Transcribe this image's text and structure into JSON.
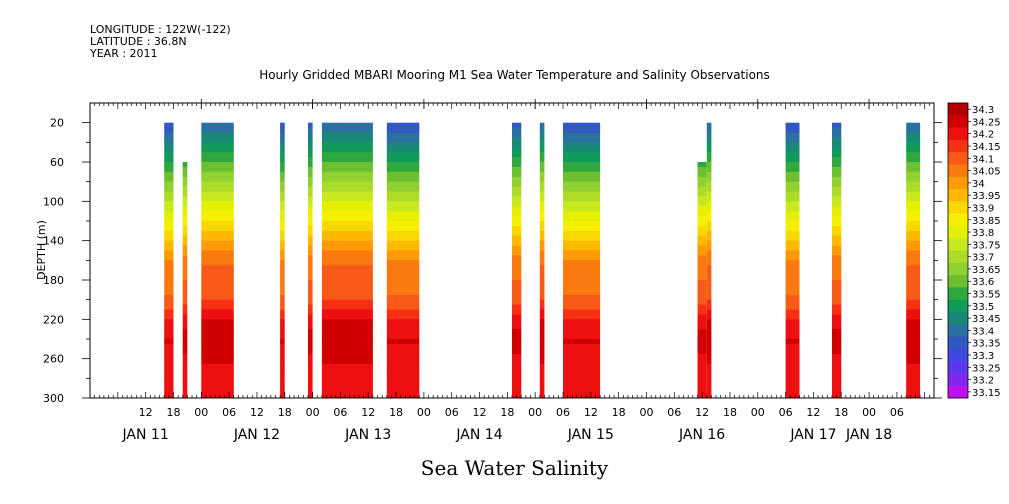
{
  "header": {
    "longitude": "LONGITUDE : 122W(-122)",
    "latitude": "LATITUDE : 36.8N",
    "year": "YEAR : 2011"
  },
  "chart_data": {
    "type": "heatmap",
    "title": "Hourly Gridded MBARI Mooring M1 Sea Water Temperature and Salinity Observations",
    "xlabel": "Sea Water Salinity",
    "ylabel": "DEPTH (m)",
    "ylim": [
      300,
      0
    ],
    "y_ticks": [
      20,
      60,
      100,
      140,
      180,
      220,
      260,
      300
    ],
    "x_range_hours": [
      0,
      182
    ],
    "x_hour_ticks": [
      {
        "h": 12,
        "label": "12"
      },
      {
        "h": 18,
        "label": "18"
      },
      {
        "h": 24,
        "label": "00"
      },
      {
        "h": 30,
        "label": "06"
      },
      {
        "h": 36,
        "label": "12"
      },
      {
        "h": 42,
        "label": "18"
      },
      {
        "h": 48,
        "label": "00"
      },
      {
        "h": 54,
        "label": "06"
      },
      {
        "h": 60,
        "label": "12"
      },
      {
        "h": 66,
        "label": "18"
      },
      {
        "h": 72,
        "label": "00"
      },
      {
        "h": 78,
        "label": "06"
      },
      {
        "h": 84,
        "label": "12"
      },
      {
        "h": 90,
        "label": "18"
      },
      {
        "h": 96,
        "label": "00"
      },
      {
        "h": 102,
        "label": "06"
      },
      {
        "h": 108,
        "label": "12"
      },
      {
        "h": 114,
        "label": "18"
      },
      {
        "h": 120,
        "label": "00"
      },
      {
        "h": 126,
        "label": "06"
      },
      {
        "h": 132,
        "label": "12"
      },
      {
        "h": 138,
        "label": "18"
      },
      {
        "h": 144,
        "label": "00"
      },
      {
        "h": 150,
        "label": "06"
      },
      {
        "h": 156,
        "label": "12"
      },
      {
        "h": 162,
        "label": "18"
      },
      {
        "h": 168,
        "label": "00"
      },
      {
        "h": 174,
        "label": "06"
      }
    ],
    "day_labels": [
      {
        "h": 12,
        "label": "JAN 11"
      },
      {
        "h": 36,
        "label": "JAN 12"
      },
      {
        "h": 60,
        "label": "JAN 13"
      },
      {
        "h": 84,
        "label": "JAN 14"
      },
      {
        "h": 108,
        "label": "JAN 15"
      },
      {
        "h": 132,
        "label": "JAN 16"
      },
      {
        "h": 156,
        "label": "JAN 17"
      },
      {
        "h": 168,
        "label": "JAN 18"
      }
    ],
    "colorbar": {
      "levels": [
        "34.3",
        "34.25",
        "34.2",
        "34.15",
        "34.1",
        "34.05",
        "34",
        "33.95",
        "33.9",
        "33.85",
        "33.8",
        "33.75",
        "33.7",
        "33.65",
        "33.6",
        "33.55",
        "33.5",
        "33.45",
        "33.4",
        "33.35",
        "33.3",
        "33.25",
        "33.2",
        "33.15"
      ],
      "colors": [
        "#b00000",
        "#d00000",
        "#ee1010",
        "#f53015",
        "#f85a18",
        "#fa7a10",
        "#fc9a08",
        "#fdb800",
        "#f8d800",
        "#f4f000",
        "#e4f000",
        "#c8e820",
        "#acdc28",
        "#90d030",
        "#6cc030",
        "#30a840",
        "#129a5a",
        "#1a8878",
        "#2a70a0",
        "#3058c0",
        "#4048e0",
        "#5a38f0",
        "#8028f0",
        "#c010f0"
      ]
    },
    "segments": [
      {
        "start": 16,
        "end": 18,
        "top_depth": 20
      },
      {
        "start": 20,
        "end": 21,
        "top_depth": 60
      },
      {
        "start": 24,
        "end": 31,
        "top_depth": 20
      },
      {
        "start": 41,
        "end": 42,
        "top_depth": 20
      },
      {
        "start": 47,
        "end": 48,
        "top_depth": 20
      },
      {
        "start": 50,
        "end": 61,
        "top_depth": 20
      },
      {
        "start": 64,
        "end": 71,
        "top_depth": 20
      },
      {
        "start": 91,
        "end": 93,
        "top_depth": 20
      },
      {
        "start": 97,
        "end": 98,
        "top_depth": 20
      },
      {
        "start": 102,
        "end": 110,
        "top_depth": 20
      },
      {
        "start": 131,
        "end": 133,
        "top_depth": 60
      },
      {
        "start": 133,
        "end": 134,
        "top_depth": 20
      },
      {
        "start": 150,
        "end": 153,
        "top_depth": 20
      },
      {
        "start": 160,
        "end": 162,
        "top_depth": 20
      },
      {
        "start": 176,
        "end": 179,
        "top_depth": 20
      }
    ],
    "salinity_profile": [
      {
        "depth": 20,
        "value": 33.35
      },
      {
        "depth": 40,
        "value": 33.45
      },
      {
        "depth": 60,
        "value": 33.55
      },
      {
        "depth": 80,
        "value": 33.65
      },
      {
        "depth": 100,
        "value": 33.75
      },
      {
        "depth": 120,
        "value": 33.85
      },
      {
        "depth": 140,
        "value": 33.95
      },
      {
        "depth": 160,
        "value": 34.05
      },
      {
        "depth": 200,
        "value": 34.1
      },
      {
        "depth": 220,
        "value": 34.2
      },
      {
        "depth": 240,
        "value": 34.25
      },
      {
        "depth": 270,
        "value": 34.2
      },
      {
        "depth": 300,
        "value": 34.2
      }
    ]
  }
}
